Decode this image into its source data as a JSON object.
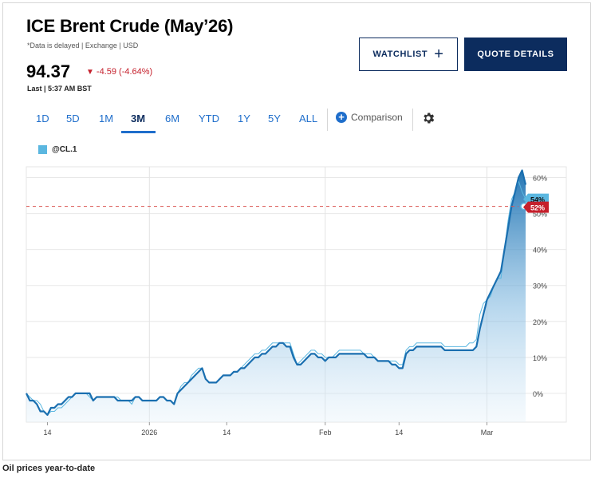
{
  "header": {
    "title": "ICE Brent Crude (May’26)",
    "meta": "*Data is delayed | Exchange | USD",
    "price": "94.37",
    "change": "-4.59 (-4.64%)",
    "last": "Last | 5:37 AM BST"
  },
  "buttons": {
    "watchlist": "WATCHLIST",
    "quote_details": "QUOTE DETAILS"
  },
  "tabs": [
    "1D",
    "5D",
    "1M",
    "3M",
    "6M",
    "YTD",
    "1Y",
    "5Y",
    "ALL"
  ],
  "active_tab": "3M",
  "comparison_label": "Comparison",
  "caption": "Oil prices year-to-date",
  "colors": {
    "navy": "#0c2c5e",
    "blue": "#1f6ecb",
    "down": "#c5202c",
    "series": "#5bb7e0",
    "line": "#1a6fb0"
  },
  "chart_data": {
    "type": "area",
    "ylim": [
      -8,
      63
    ],
    "y_ticks": [
      "60%",
      "50%",
      "40%",
      "30%",
      "20%",
      "10%",
      "0%"
    ],
    "y_tick_values": [
      60,
      50,
      40,
      30,
      20,
      10,
      0
    ],
    "x_tick_labels": [
      "14",
      "2026",
      "14",
      "Feb",
      "14",
      "Mar"
    ],
    "x_tick_index": [
      6,
      35,
      57,
      85,
      106,
      131
    ],
    "series": [
      {
        "name": "@CL.1",
        "values": [
          0,
          -2,
          -2,
          -3,
          -5,
          -5,
          -6,
          -4,
          -4,
          -3,
          -3,
          -2,
          -1,
          -1,
          0,
          0,
          0,
          0,
          0,
          -2,
          -1,
          -1,
          -1,
          -1,
          -1,
          -1,
          -2,
          -2,
          -2,
          -2,
          -2,
          -1,
          -1,
          -2,
          -2,
          -2,
          -2,
          -2,
          -1,
          -1,
          -2,
          -2,
          -3,
          0,
          1,
          2,
          3,
          4,
          5,
          6,
          7,
          4,
          3,
          3,
          3,
          4,
          5,
          5,
          5,
          6,
          6,
          7,
          7,
          8,
          9,
          10,
          10,
          11,
          11,
          12,
          13,
          13,
          14,
          14,
          13,
          13,
          10,
          8,
          8,
          9,
          10,
          11,
          11,
          10,
          10,
          9,
          10,
          10,
          10,
          11,
          11,
          11,
          11,
          11,
          11,
          11,
          11,
          10,
          10,
          10,
          9,
          9,
          9,
          9,
          8,
          8,
          7,
          7,
          11,
          12,
          12,
          13,
          13,
          13,
          13,
          13,
          13,
          13,
          13,
          12,
          12,
          12,
          12,
          12,
          12,
          12,
          12,
          12,
          13,
          18,
          22,
          26,
          28,
          30,
          32,
          34,
          40,
          46,
          52,
          56,
          60,
          62,
          58
        ]
      },
      {
        "name": "",
        "values": [
          0,
          -1,
          -2,
          -2,
          -3,
          -5,
          -6,
          -5,
          -5,
          -4,
          -4,
          -3,
          -2,
          -1,
          0,
          0,
          0,
          0,
          -1,
          -2,
          -1,
          -1,
          -1,
          -1,
          -1,
          -1,
          -1,
          -2,
          -2,
          -2,
          -3,
          -1,
          -1,
          -2,
          -2,
          -2,
          -2,
          -2,
          -1,
          -1,
          -2,
          -2,
          -3,
          0,
          2,
          3,
          3,
          5,
          6,
          7,
          7,
          4,
          3,
          3,
          3,
          4,
          5,
          5,
          5,
          6,
          6,
          7,
          8,
          9,
          10,
          11,
          11,
          12,
          12,
          13,
          14,
          14,
          14,
          14,
          14,
          14,
          11,
          8,
          9,
          10,
          11,
          12,
          12,
          11,
          11,
          10,
          10,
          10,
          11,
          12,
          12,
          12,
          12,
          12,
          12,
          12,
          11,
          11,
          11,
          10,
          9,
          9,
          9,
          9,
          9,
          9,
          8,
          8,
          12,
          13,
          13,
          14,
          14,
          14,
          14,
          14,
          14,
          14,
          14,
          13,
          13,
          13,
          13,
          13,
          13,
          13,
          14,
          14,
          15,
          22,
          25,
          26,
          27,
          30,
          32,
          32,
          40,
          48,
          54,
          56,
          59,
          56,
          54
        ]
      }
    ],
    "reference_line": {
      "value": 52,
      "label": "52%"
    },
    "end_labels": [
      "54%",
      "52%"
    ],
    "grid": true,
    "legend_position": "top-left"
  }
}
